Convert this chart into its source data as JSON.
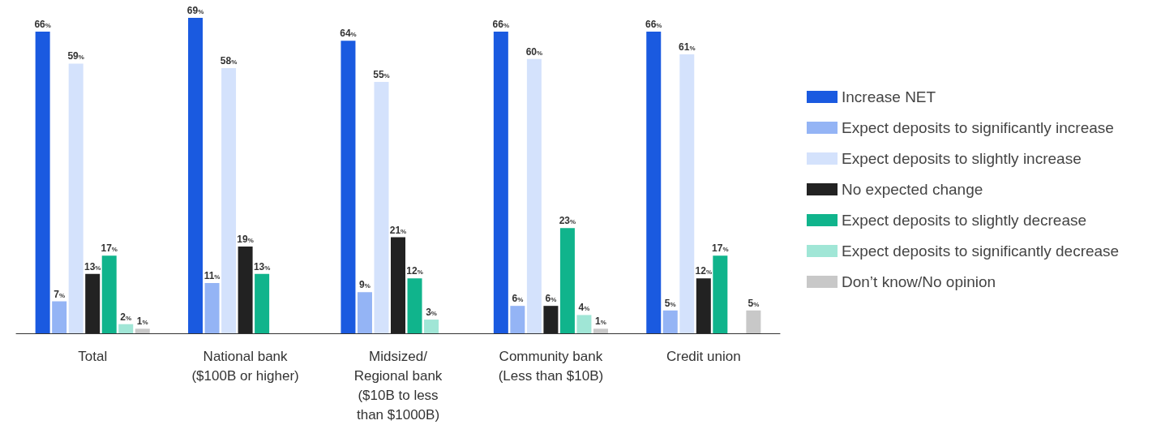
{
  "chart_data": {
    "type": "bar",
    "categories": [
      "Total",
      "National bank\n($100B or higher)",
      "Midsized/\nRegional bank\n($10B to less\nthan $1000B)",
      "Community bank\n(Less than $10B)",
      "Credit union"
    ],
    "series": [
      {
        "name": "Increase NET",
        "color": "#1a5ae0",
        "values": [
          66,
          69,
          64,
          66,
          66
        ],
        "value_labels": [
          "66%",
          "69%",
          "64%",
          "66%",
          "66%"
        ]
      },
      {
        "name": "Expect deposits to significantly increase",
        "color": "#94b4f5",
        "values": [
          7,
          11,
          9,
          6,
          5
        ],
        "value_labels": [
          "7%",
          "11%",
          "9%",
          "6%",
          "5%"
        ]
      },
      {
        "name": "Expect deposits to slightly increase",
        "color": "#d4e2fc",
        "values": [
          59,
          58,
          55,
          60,
          61
        ],
        "value_labels": [
          "59%",
          "58%",
          "55%",
          "60%",
          "61%"
        ]
      },
      {
        "name": "No expected change",
        "color": "#222222",
        "values": [
          13,
          19,
          21,
          6,
          12
        ],
        "value_labels": [
          "13%",
          "19%",
          "21%",
          "6%",
          "12%"
        ]
      },
      {
        "name": "Expect deposits to slightly decrease",
        "color": "#10b48c",
        "values": [
          17,
          13,
          12,
          23,
          17
        ],
        "value_labels": [
          "17%",
          "13%",
          "12%",
          "23%",
          "17%"
        ]
      },
      {
        "name": "Expect deposits to significantly decrease",
        "color": "#a0e6d6",
        "values": [
          2,
          null,
          3,
          4,
          null
        ],
        "value_labels": [
          "2%",
          null,
          "3%",
          "4%",
          null
        ]
      },
      {
        "name": "Don’t know/No opinion",
        "color": "#c8c8c8",
        "values": [
          1,
          null,
          null,
          1,
          5
        ],
        "value_labels": [
          "1%",
          null,
          null,
          "1%",
          "5%"
        ]
      }
    ],
    "legend": "right"
  }
}
